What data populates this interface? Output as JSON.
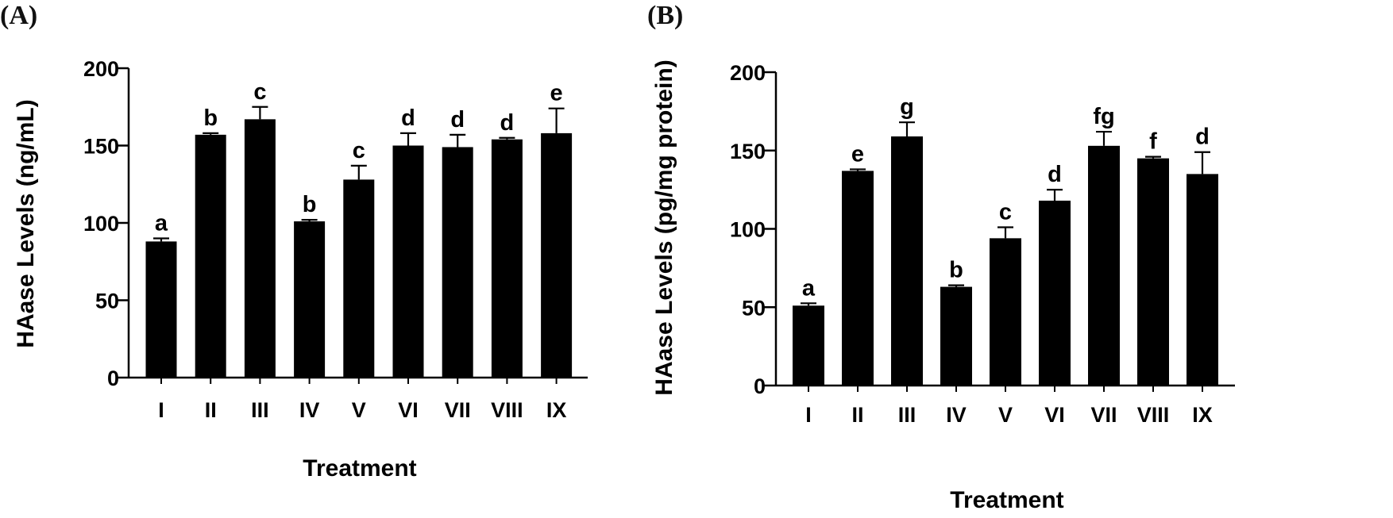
{
  "chart_data": [
    {
      "panel": "(A)",
      "type": "bar",
      "title": "",
      "xlabel": "Treatment",
      "ylabel": "HAase Levels (ng/mL)",
      "categories": [
        "I",
        "II",
        "III",
        "IV",
        "V",
        "VI",
        "VII",
        "VIII",
        "IX"
      ],
      "values": [
        88,
        157,
        167,
        101,
        128,
        150,
        149,
        154,
        158
      ],
      "errors": [
        2,
        1,
        8,
        1,
        9,
        8,
        8,
        1,
        16
      ],
      "significance": [
        "a",
        "b",
        "c",
        "b",
        "c",
        "d",
        "d",
        "d",
        "e"
      ],
      "ylim": [
        0,
        200
      ],
      "yticks": [
        "0",
        "50",
        "100",
        "150",
        "200"
      ],
      "bar_color": "#000000",
      "grid": false
    },
    {
      "panel": "(B)",
      "type": "bar",
      "title": "",
      "xlabel": "Treatment",
      "ylabel": "HAase Levels (pg/mg protein)",
      "categories": [
        "I",
        "II",
        "III",
        "IV",
        "V",
        "VI",
        "VII",
        "VIII",
        "IX"
      ],
      "values": [
        51,
        137,
        159,
        63,
        94,
        118,
        153,
        145,
        135
      ],
      "errors": [
        1.5,
        1,
        9,
        1,
        7,
        7,
        9,
        1,
        14
      ],
      "significance": [
        "a",
        "e",
        "g",
        "b",
        "c",
        "d",
        "fg",
        "f",
        "d"
      ],
      "ylim": [
        0,
        200
      ],
      "yticks": [
        "0",
        "50",
        "100",
        "150",
        "200"
      ],
      "bar_color": "#000000",
      "grid": false
    }
  ]
}
